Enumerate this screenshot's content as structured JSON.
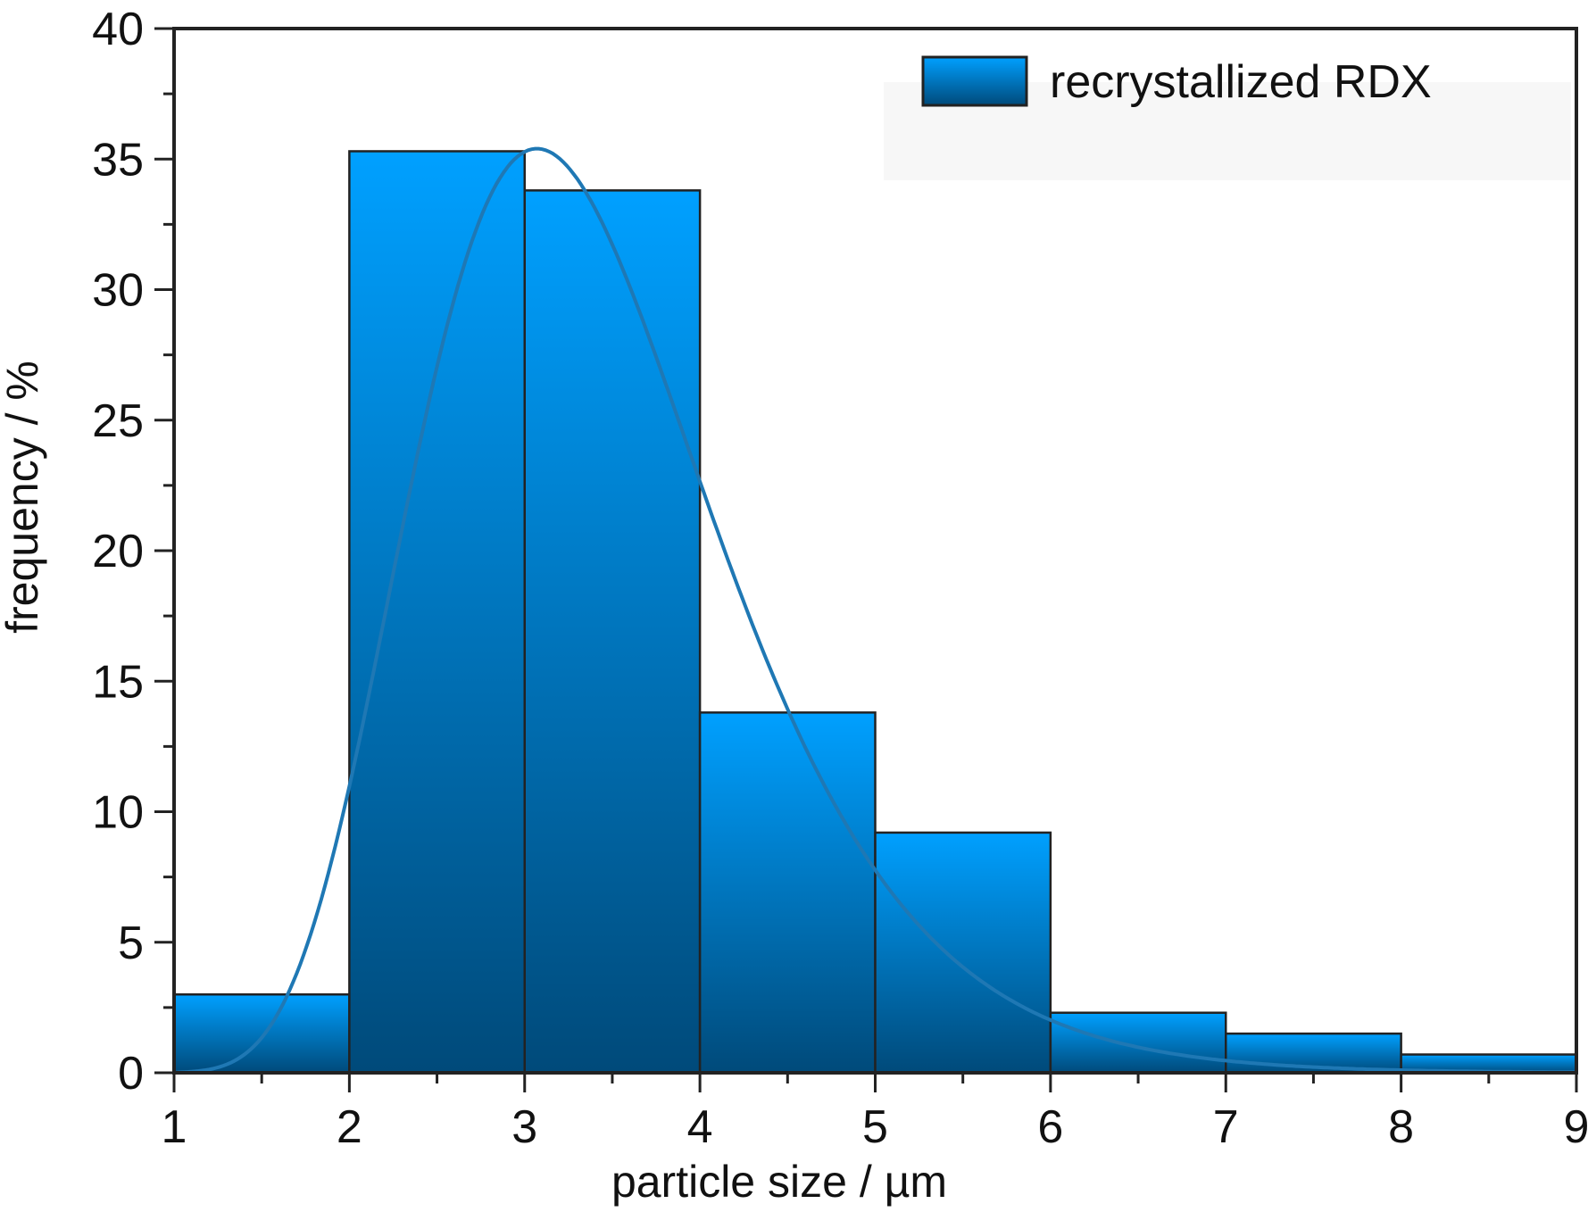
{
  "chart_data": {
    "type": "bar",
    "subtype": "histogram",
    "xlabel": "particle size / µm",
    "ylabel": "frequency / %",
    "xlim": [
      1,
      9
    ],
    "ylim": [
      0,
      40
    ],
    "xticks": [
      "1",
      "2",
      "3",
      "4",
      "5",
      "6",
      "7",
      "8",
      "9"
    ],
    "yticks": [
      "0",
      "5",
      "10",
      "15",
      "20",
      "25",
      "30",
      "35",
      "40"
    ],
    "bins": [
      {
        "x0": 1,
        "x1": 2,
        "value": 3.0
      },
      {
        "x0": 2,
        "x1": 3,
        "value": 35.3
      },
      {
        "x0": 3,
        "x1": 4,
        "value": 33.8
      },
      {
        "x0": 4,
        "x1": 5,
        "value": 13.8
      },
      {
        "x0": 5,
        "x1": 6,
        "value": 9.2
      },
      {
        "x0": 6,
        "x1": 7,
        "value": 2.3
      },
      {
        "x0": 7,
        "x1": 8,
        "value": 1.5
      },
      {
        "x0": 8,
        "x1": 9,
        "value": 0.7
      }
    ],
    "fit_curve": {
      "type": "lognormal",
      "peak_x": 3.07,
      "peak_y": 35.4,
      "sigma": 0.28
    },
    "legend": {
      "position": "top-right",
      "entries": [
        "recrystallized RDX"
      ]
    },
    "grid": false,
    "colors": {
      "bar_top": "#00a0ff",
      "bar_bottom": "#004a7a",
      "curve": "#1f78b4",
      "edge": "#222222"
    }
  }
}
